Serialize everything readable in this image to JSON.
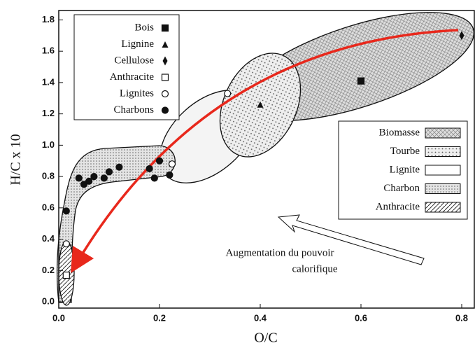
{
  "chart_data": {
    "type": "scatter",
    "x_label": "O/C",
    "y_label": "H/C x 10",
    "xlim": [
      0,
      0.825
    ],
    "ylim": [
      -0.04,
      1.86
    ],
    "xticks": [
      {
        "value": 0,
        "label": "0.0"
      },
      0.2,
      0.4,
      0.6,
      0.8
    ],
    "yticks": [
      {
        "value": 0,
        "label": "0.0"
      },
      0.2,
      0.4,
      0.6,
      0.8,
      {
        "value": 1,
        "label": "1.0"
      },
      1.2,
      1.4,
      1.6,
      1.8
    ],
    "series": [
      {
        "name": "Bois",
        "marker": "square",
        "color": "#111111",
        "x": [
          0.6
        ],
        "values": [
          1.41
        ]
      },
      {
        "name": "Lignine",
        "marker": "triangle",
        "color": "#111111",
        "x": [
          0.4
        ],
        "values": [
          1.26
        ]
      },
      {
        "name": "Cellulose",
        "marker": "diamond",
        "color": "#111111",
        "x": [
          0.8
        ],
        "values": [
          1.7
        ]
      },
      {
        "name": "Anthracite",
        "marker": "open-square",
        "color": "#111111",
        "x": [
          0.015
        ],
        "values": [
          0.17
        ]
      },
      {
        "name": "Lignites",
        "marker": "open-circle",
        "color": "#111111",
        "x": [
          0.335,
          0.225,
          0.015
        ],
        "values": [
          1.33,
          0.88,
          0.37
        ]
      },
      {
        "name": "Charbons",
        "marker": "circle",
        "color": "#111111",
        "x": [
          0.015,
          0.04,
          0.05,
          0.06,
          0.07,
          0.09,
          0.1,
          0.12,
          0.18,
          0.19,
          0.22,
          0.2
        ],
        "values": [
          0.58,
          0.79,
          0.75,
          0.77,
          0.8,
          0.79,
          0.83,
          0.86,
          0.85,
          0.79,
          0.81,
          0.9
        ]
      }
    ],
    "regions": [
      "Biomasse",
      "Tourbe",
      "Lignite",
      "Charbon",
      "Anthracite"
    ],
    "annotation": [
      "Augmentation du pouvoir",
      "calorifique"
    ]
  }
}
